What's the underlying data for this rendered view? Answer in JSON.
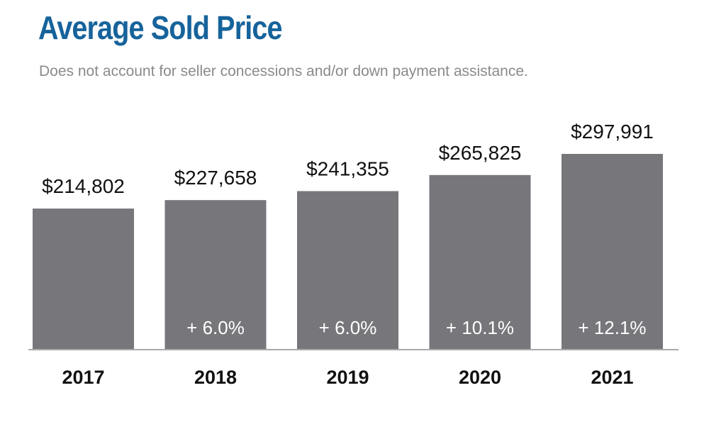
{
  "colors": {
    "title": "#16639b",
    "bar": "#77767b",
    "baseline": "#a9a9ab",
    "change_text": "#ffffff",
    "subtitle": "#8a8a8c"
  },
  "chart_data": {
    "type": "bar",
    "title": "Average Sold Price",
    "subtitle": "Does not account for seller concessions and/or down payment assistance.",
    "categories": [
      "2017",
      "2018",
      "2019",
      "2020",
      "2021"
    ],
    "values": [
      214802,
      227658,
      241355,
      265825,
      297991
    ],
    "value_labels": [
      "$214,802",
      "$227,658",
      "$241,355",
      "$265,825",
      "$297,991"
    ],
    "change_labels": [
      "",
      "+ 6.0%",
      "+ 6.0%",
      "+ 10.1%",
      "+ 12.1%"
    ],
    "xlabel": "",
    "ylabel": "",
    "ylim": [
      0,
      297991
    ],
    "grid": false,
    "legend": "none"
  }
}
